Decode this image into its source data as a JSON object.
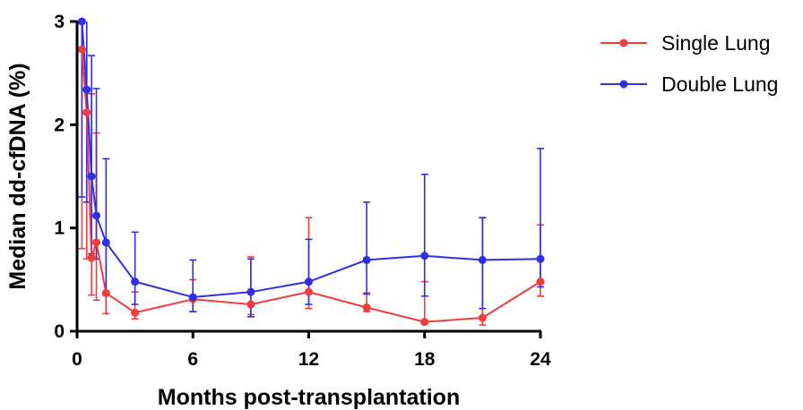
{
  "chart_data": {
    "type": "line",
    "xlabel": "Months post-transplantation",
    "ylabel": "Median dd-cfDNA (%)",
    "xlim": [
      0,
      24
    ],
    "ylim": [
      0,
      3
    ],
    "x_ticks": [
      0,
      6,
      12,
      18,
      24
    ],
    "y_ticks": [
      0,
      1,
      2,
      3
    ],
    "grid": false,
    "legend_position": "top-right",
    "series": [
      {
        "name": "Single Lung",
        "color": "#f03c3c",
        "points": [
          {
            "x": 0.25,
            "y": 2.73,
            "lo": 0.8,
            "hi": 3.0
          },
          {
            "x": 0.5,
            "y": 2.12,
            "lo": 0.7,
            "hi": 3.0
          },
          {
            "x": 0.75,
            "y": 0.71,
            "lo": 0.35,
            "hi": 2.3
          },
          {
            "x": 1,
            "y": 0.86,
            "lo": 0.3,
            "hi": 1.92
          },
          {
            "x": 1.5,
            "y": 0.37,
            "lo": 0.17,
            "hi": 0.85
          },
          {
            "x": 3,
            "y": 0.18,
            "lo": 0.12,
            "hi": 0.38
          },
          {
            "x": 6,
            "y": 0.31,
            "lo": 0.19,
            "hi": 0.5
          },
          {
            "x": 9,
            "y": 0.26,
            "lo": 0.16,
            "hi": 0.72
          },
          {
            "x": 12,
            "y": 0.38,
            "lo": 0.22,
            "hi": 1.1
          },
          {
            "x": 15,
            "y": 0.23,
            "lo": 0.19,
            "hi": 0.37
          },
          {
            "x": 18,
            "y": 0.09,
            "lo": 0.07,
            "hi": 0.48
          },
          {
            "x": 21,
            "y": 0.13,
            "lo": 0.06,
            "hi": 1.1
          },
          {
            "x": 24,
            "y": 0.48,
            "lo": 0.34,
            "hi": 1.03
          }
        ]
      },
      {
        "name": "Double Lung",
        "color": "#2f2fe8",
        "points": [
          {
            "x": 0.25,
            "y": 3.0,
            "lo": 1.3,
            "hi": 3.0
          },
          {
            "x": 0.5,
            "y": 2.34,
            "lo": 1.25,
            "hi": 3.0
          },
          {
            "x": 0.75,
            "y": 1.5,
            "lo": 0.75,
            "hi": 2.67
          },
          {
            "x": 1,
            "y": 1.12,
            "lo": 0.7,
            "hi": 2.35
          },
          {
            "x": 1.5,
            "y": 0.86,
            "lo": 0.35,
            "hi": 1.67
          },
          {
            "x": 3,
            "y": 0.48,
            "lo": 0.26,
            "hi": 0.96
          },
          {
            "x": 6,
            "y": 0.33,
            "lo": 0.19,
            "hi": 0.69
          },
          {
            "x": 9,
            "y": 0.38,
            "lo": 0.14,
            "hi": 0.7
          },
          {
            "x": 12,
            "y": 0.48,
            "lo": 0.26,
            "hi": 0.89
          },
          {
            "x": 15,
            "y": 0.69,
            "lo": 0.36,
            "hi": 1.25
          },
          {
            "x": 18,
            "y": 0.73,
            "lo": 0.34,
            "hi": 1.52
          },
          {
            "x": 21,
            "y": 0.69,
            "lo": 0.22,
            "hi": 1.1
          },
          {
            "x": 24,
            "y": 0.7,
            "lo": 0.43,
            "hi": 1.77
          }
        ]
      }
    ]
  }
}
